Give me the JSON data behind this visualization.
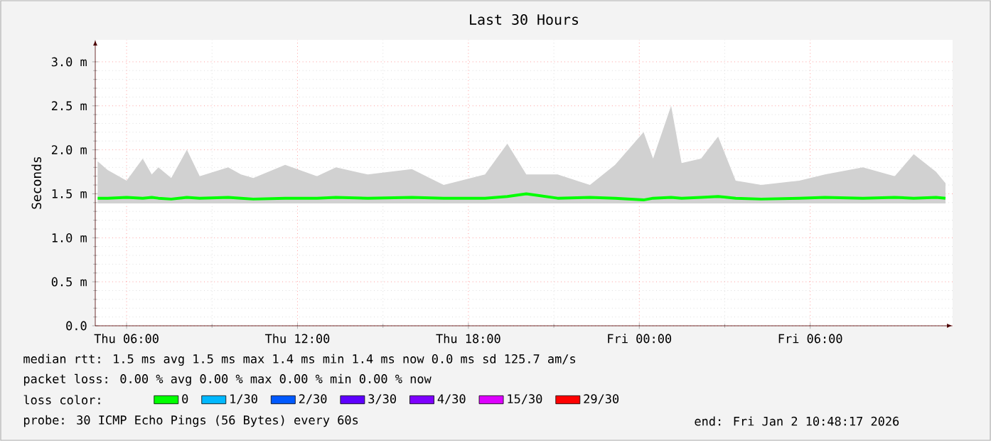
{
  "chart_data": {
    "type": "line",
    "title": "Last 30 Hours",
    "ylabel": "Seconds",
    "x": [
      "2026-01-01T04:59",
      "2026-01-01T05:20",
      "2026-01-01T06:00",
      "2026-01-01T06:34",
      "2026-01-01T06:53",
      "2026-01-01T07:07",
      "2026-01-01T07:34",
      "2026-01-01T08:07",
      "2026-01-01T08:34",
      "2026-01-01T09:34",
      "2026-01-01T10:01",
      "2026-01-01T10:27",
      "2026-01-01T11:34",
      "2026-01-01T12:41",
      "2026-01-01T13:21",
      "2026-01-01T14:28",
      "2026-01-01T16:01",
      "2026-01-01T17:08",
      "2026-01-01T18:35",
      "2026-01-01T19:22",
      "2026-01-01T20:02",
      "2026-01-01T21:08",
      "2026-01-01T22:16",
      "2026-01-01T23:09",
      "2026-01-02T00:09",
      "2026-01-02T00:29",
      "2026-01-02T01:07",
      "2026-01-02T01:29",
      "2026-01-02T02:10",
      "2026-01-02T02:46",
      "2026-01-02T03:23",
      "2026-01-02T04:17",
      "2026-01-02T05:37",
      "2026-01-02T06:31",
      "2026-01-02T07:51",
      "2026-01-02T08:58",
      "2026-01-02T09:38",
      "2026-01-02T10:25",
      "2026-01-02T10:45"
    ],
    "series": [
      {
        "name": "0",
        "color": "#00ff00",
        "values": [
          1.45,
          1.45,
          1.46,
          1.45,
          1.46,
          1.45,
          1.44,
          1.46,
          1.45,
          1.46,
          1.45,
          1.44,
          1.45,
          1.45,
          1.46,
          1.45,
          1.46,
          1.45,
          1.45,
          1.47,
          1.5,
          1.45,
          1.46,
          1.45,
          1.43,
          1.45,
          1.46,
          1.45,
          1.46,
          1.47,
          1.45,
          1.44,
          1.45,
          1.46,
          1.45,
          1.46,
          1.45,
          1.46,
          1.45
        ],
        "lower": [
          1.39,
          1.39,
          1.39,
          1.39,
          1.39,
          1.39,
          1.39,
          1.39,
          1.39,
          1.39,
          1.39,
          1.39,
          1.39,
          1.39,
          1.39,
          1.39,
          1.39,
          1.39,
          1.39,
          1.39,
          1.39,
          1.39,
          1.39,
          1.39,
          1.39,
          1.39,
          1.39,
          1.39,
          1.39,
          1.39,
          1.39,
          1.39,
          1.39,
          1.39,
          1.39,
          1.39,
          1.39,
          1.39,
          1.39
        ],
        "upper": [
          1.87,
          1.77,
          1.65,
          1.9,
          1.72,
          1.8,
          1.68,
          2.0,
          1.7,
          1.8,
          1.72,
          1.68,
          1.83,
          1.7,
          1.8,
          1.72,
          1.78,
          1.6,
          1.72,
          2.07,
          1.72,
          1.72,
          1.6,
          1.83,
          2.2,
          1.9,
          2.5,
          1.85,
          1.9,
          2.15,
          1.65,
          1.6,
          1.65,
          1.72,
          1.8,
          1.7,
          1.95,
          1.75,
          1.62
        ]
      },
      {
        "name": "1/30",
        "color": "#00b8ff",
        "values": [
          null,
          null,
          null,
          null,
          null,
          null,
          null,
          null,
          null,
          null,
          null,
          null,
          null,
          null,
          null,
          null,
          null,
          null,
          null,
          null,
          null,
          null,
          null,
          null,
          null,
          null,
          null,
          null,
          null,
          null,
          null,
          null,
          null,
          null,
          null,
          null,
          null,
          null,
          null
        ]
      },
      {
        "name": "2/30",
        "color": "#0059ff",
        "values": [
          null,
          null,
          null,
          null,
          null,
          null,
          null,
          null,
          null,
          null,
          null,
          null,
          null,
          null,
          null,
          null,
          null,
          null,
          null,
          null,
          null,
          null,
          null,
          null,
          null,
          null,
          null,
          null,
          null,
          null,
          null,
          null,
          null,
          null,
          null,
          null,
          null,
          null,
          null
        ]
      },
      {
        "name": "3/30",
        "color": "#5e00ff",
        "values": [
          null,
          null,
          null,
          null,
          null,
          null,
          null,
          null,
          null,
          null,
          null,
          null,
          null,
          null,
          null,
          null,
          null,
          null,
          null,
          null,
          null,
          null,
          null,
          null,
          null,
          null,
          null,
          null,
          null,
          null,
          null,
          null,
          null,
          null,
          null,
          null,
          null,
          null,
          null
        ]
      },
      {
        "name": "4/30",
        "color": "#7e00ff",
        "values": [
          null,
          null,
          null,
          null,
          null,
          null,
          null,
          null,
          null,
          null,
          null,
          null,
          null,
          null,
          null,
          null,
          null,
          null,
          null,
          null,
          null,
          null,
          null,
          null,
          null,
          null,
          null,
          null,
          null,
          null,
          null,
          null,
          null,
          null,
          null,
          null,
          null,
          null,
          null
        ]
      },
      {
        "name": "15/30",
        "color": "#dd00ff",
        "values": [
          null,
          null,
          null,
          null,
          null,
          null,
          null,
          null,
          null,
          null,
          null,
          null,
          null,
          null,
          null,
          null,
          null,
          null,
          null,
          null,
          null,
          null,
          null,
          null,
          null,
          null,
          null,
          null,
          null,
          null,
          null,
          null,
          null,
          null,
          null,
          null,
          null,
          null,
          null
        ]
      },
      {
        "name": "29/30",
        "color": "#ff0000",
        "values": [
          null,
          null,
          null,
          null,
          null,
          null,
          null,
          null,
          null,
          null,
          null,
          null,
          null,
          null,
          null,
          null,
          null,
          null,
          null,
          null,
          null,
          null,
          null,
          null,
          null,
          null,
          null,
          null,
          null,
          null,
          null,
          null,
          null,
          null,
          null,
          null,
          null,
          null,
          null
        ]
      }
    ],
    "legend_title": "loss color:",
    "legend": "bottom",
    "xlim": [
      "2026-01-01T04:54",
      "2026-01-02T11:00"
    ],
    "xticks": [
      {
        "value": "2026-01-01T06:00",
        "label": "Thu 06:00"
      },
      {
        "value": "2026-01-01T12:00",
        "label": "Thu 12:00"
      },
      {
        "value": "2026-01-01T18:00",
        "label": "Thu 18:00"
      },
      {
        "value": "2026-01-02T00:00",
        "label": "Fri 00:00"
      },
      {
        "value": "2026-01-02T06:00",
        "label": "Fri 06:00"
      }
    ],
    "ylim": [
      0,
      3.25
    ],
    "yticks": [
      {
        "value": 0,
        "label": "0.0"
      },
      {
        "value": 0.5,
        "label": "0.5 m"
      },
      {
        "value": 1.0,
        "label": "1.0 m"
      },
      {
        "value": 1.5,
        "label": "1.5 m"
      },
      {
        "value": 2.0,
        "label": "2.0 m"
      },
      {
        "value": 2.5,
        "label": "2.5 m"
      },
      {
        "value": 3.0,
        "label": "3.0 m"
      }
    ],
    "grid": true,
    "line_style": "solid",
    "annotations": [
      "median rtt:  1.5 ms avg  1.5 ms max  1.4 ms min  1.4 ms now  0.0 ms sd  125.7  am/s",
      "packet loss: 0.00 % avg  0.00 % max  0.00 % min  0.00 % now",
      "probe:  30 ICMP Echo Pings (56 Bytes) every 60s",
      "end: Fri Jan  2 10:48:17 2026"
    ]
  }
}
